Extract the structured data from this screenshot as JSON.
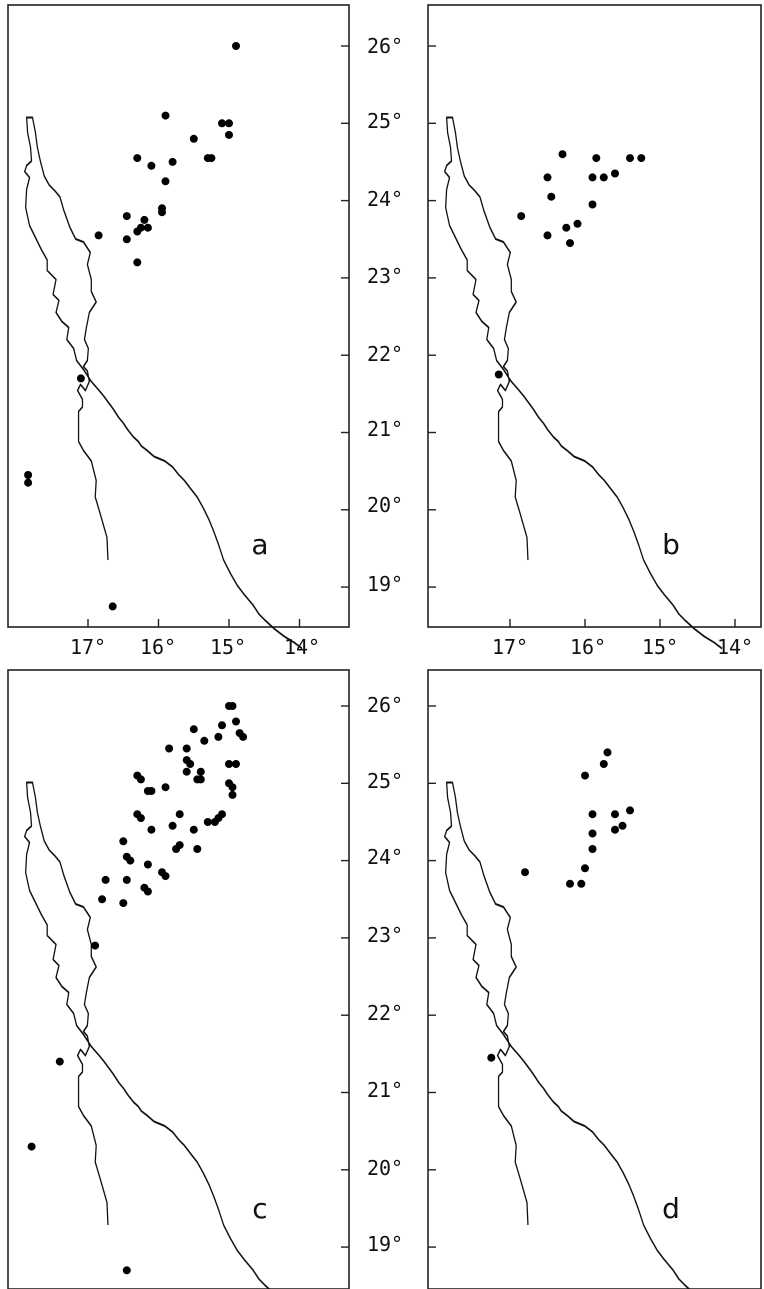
{
  "figure": {
    "latitude_axis_labels": [
      "26°",
      "25°",
      "24°",
      "23°",
      "22°",
      "21°",
      "20°",
      "19°"
    ],
    "longitude_axis_labels": [
      "17°",
      "16°",
      "15°",
      "14°"
    ],
    "latitude_ticks": [
      26,
      25,
      24,
      23,
      22,
      21,
      20,
      19
    ],
    "longitude_ticks": [
      17,
      16,
      15,
      14
    ],
    "panels": [
      {
        "id": "a",
        "letter": "a",
        "points": [
          [
            14.9,
            26.0
          ],
          [
            15.9,
            25.1
          ],
          [
            15.5,
            24.8
          ],
          [
            15.1,
            25.0
          ],
          [
            15.0,
            25.0
          ],
          [
            15.0,
            24.85
          ],
          [
            16.3,
            24.55
          ],
          [
            16.1,
            24.45
          ],
          [
            15.8,
            24.5
          ],
          [
            15.9,
            24.25
          ],
          [
            15.3,
            24.55
          ],
          [
            15.25,
            24.55
          ],
          [
            15.95,
            23.9
          ],
          [
            15.95,
            23.85
          ],
          [
            16.45,
            23.8
          ],
          [
            16.2,
            23.75
          ],
          [
            16.25,
            23.65
          ],
          [
            16.3,
            23.6
          ],
          [
            16.15,
            23.65
          ],
          [
            16.85,
            23.55
          ],
          [
            16.45,
            23.5
          ],
          [
            16.3,
            23.2
          ],
          [
            17.1,
            21.7
          ],
          [
            17.85,
            20.45
          ],
          [
            17.85,
            20.35
          ],
          [
            16.65,
            18.75
          ]
        ]
      },
      {
        "id": "b",
        "letter": "b",
        "points": [
          [
            16.3,
            24.6
          ],
          [
            15.85,
            24.55
          ],
          [
            15.4,
            24.55
          ],
          [
            15.25,
            24.55
          ],
          [
            16.5,
            24.3
          ],
          [
            15.9,
            24.3
          ],
          [
            15.75,
            24.3
          ],
          [
            15.6,
            24.35
          ],
          [
            16.45,
            24.05
          ],
          [
            15.9,
            23.95
          ],
          [
            16.85,
            23.8
          ],
          [
            16.25,
            23.65
          ],
          [
            16.1,
            23.7
          ],
          [
            16.5,
            23.55
          ],
          [
            16.2,
            23.45
          ],
          [
            17.15,
            21.75
          ]
        ]
      },
      {
        "id": "c",
        "letter": "c",
        "points": [
          [
            15.0,
            26.0
          ],
          [
            14.95,
            26.0
          ],
          [
            15.5,
            25.7
          ],
          [
            15.1,
            25.75
          ],
          [
            14.9,
            25.8
          ],
          [
            14.85,
            25.65
          ],
          [
            14.8,
            25.6
          ],
          [
            15.85,
            25.45
          ],
          [
            15.6,
            25.45
          ],
          [
            15.35,
            25.55
          ],
          [
            15.15,
            25.6
          ],
          [
            15.6,
            25.3
          ],
          [
            15.55,
            25.25
          ],
          [
            15.4,
            25.15
          ],
          [
            15.0,
            25.25
          ],
          [
            14.9,
            25.25
          ],
          [
            16.3,
            25.1
          ],
          [
            16.25,
            25.05
          ],
          [
            15.6,
            25.15
          ],
          [
            15.45,
            25.05
          ],
          [
            15.4,
            25.05
          ],
          [
            15.0,
            25.0
          ],
          [
            14.95,
            24.95
          ],
          [
            16.15,
            24.9
          ],
          [
            16.1,
            24.9
          ],
          [
            15.9,
            24.95
          ],
          [
            14.95,
            24.85
          ],
          [
            16.3,
            24.6
          ],
          [
            16.25,
            24.55
          ],
          [
            15.7,
            24.6
          ],
          [
            15.3,
            24.5
          ],
          [
            15.2,
            24.5
          ],
          [
            15.15,
            24.55
          ],
          [
            15.1,
            24.6
          ],
          [
            16.1,
            24.4
          ],
          [
            15.8,
            24.45
          ],
          [
            15.5,
            24.4
          ],
          [
            16.5,
            24.25
          ],
          [
            15.75,
            24.15
          ],
          [
            15.7,
            24.2
          ],
          [
            15.45,
            24.15
          ],
          [
            16.45,
            24.05
          ],
          [
            16.4,
            24.0
          ],
          [
            16.15,
            23.95
          ],
          [
            15.95,
            23.85
          ],
          [
            16.45,
            23.75
          ],
          [
            16.75,
            23.75
          ],
          [
            15.9,
            23.8
          ],
          [
            16.2,
            23.65
          ],
          [
            16.15,
            23.6
          ],
          [
            16.8,
            23.5
          ],
          [
            16.5,
            23.45
          ],
          [
            16.9,
            22.9
          ],
          [
            17.4,
            21.4
          ],
          [
            17.8,
            20.3
          ],
          [
            16.45,
            18.7
          ]
        ]
      },
      {
        "id": "d",
        "letter": "d",
        "points": [
          [
            15.7,
            25.4
          ],
          [
            15.75,
            25.25
          ],
          [
            16.0,
            25.1
          ],
          [
            15.4,
            24.65
          ],
          [
            15.6,
            24.6
          ],
          [
            15.9,
            24.6
          ],
          [
            15.6,
            24.4
          ],
          [
            15.5,
            24.45
          ],
          [
            15.9,
            24.35
          ],
          [
            15.9,
            24.15
          ],
          [
            16.0,
            23.9
          ],
          [
            16.8,
            23.85
          ],
          [
            16.2,
            23.7
          ],
          [
            16.05,
            23.7
          ],
          [
            17.25,
            21.45
          ]
        ]
      }
    ]
  }
}
